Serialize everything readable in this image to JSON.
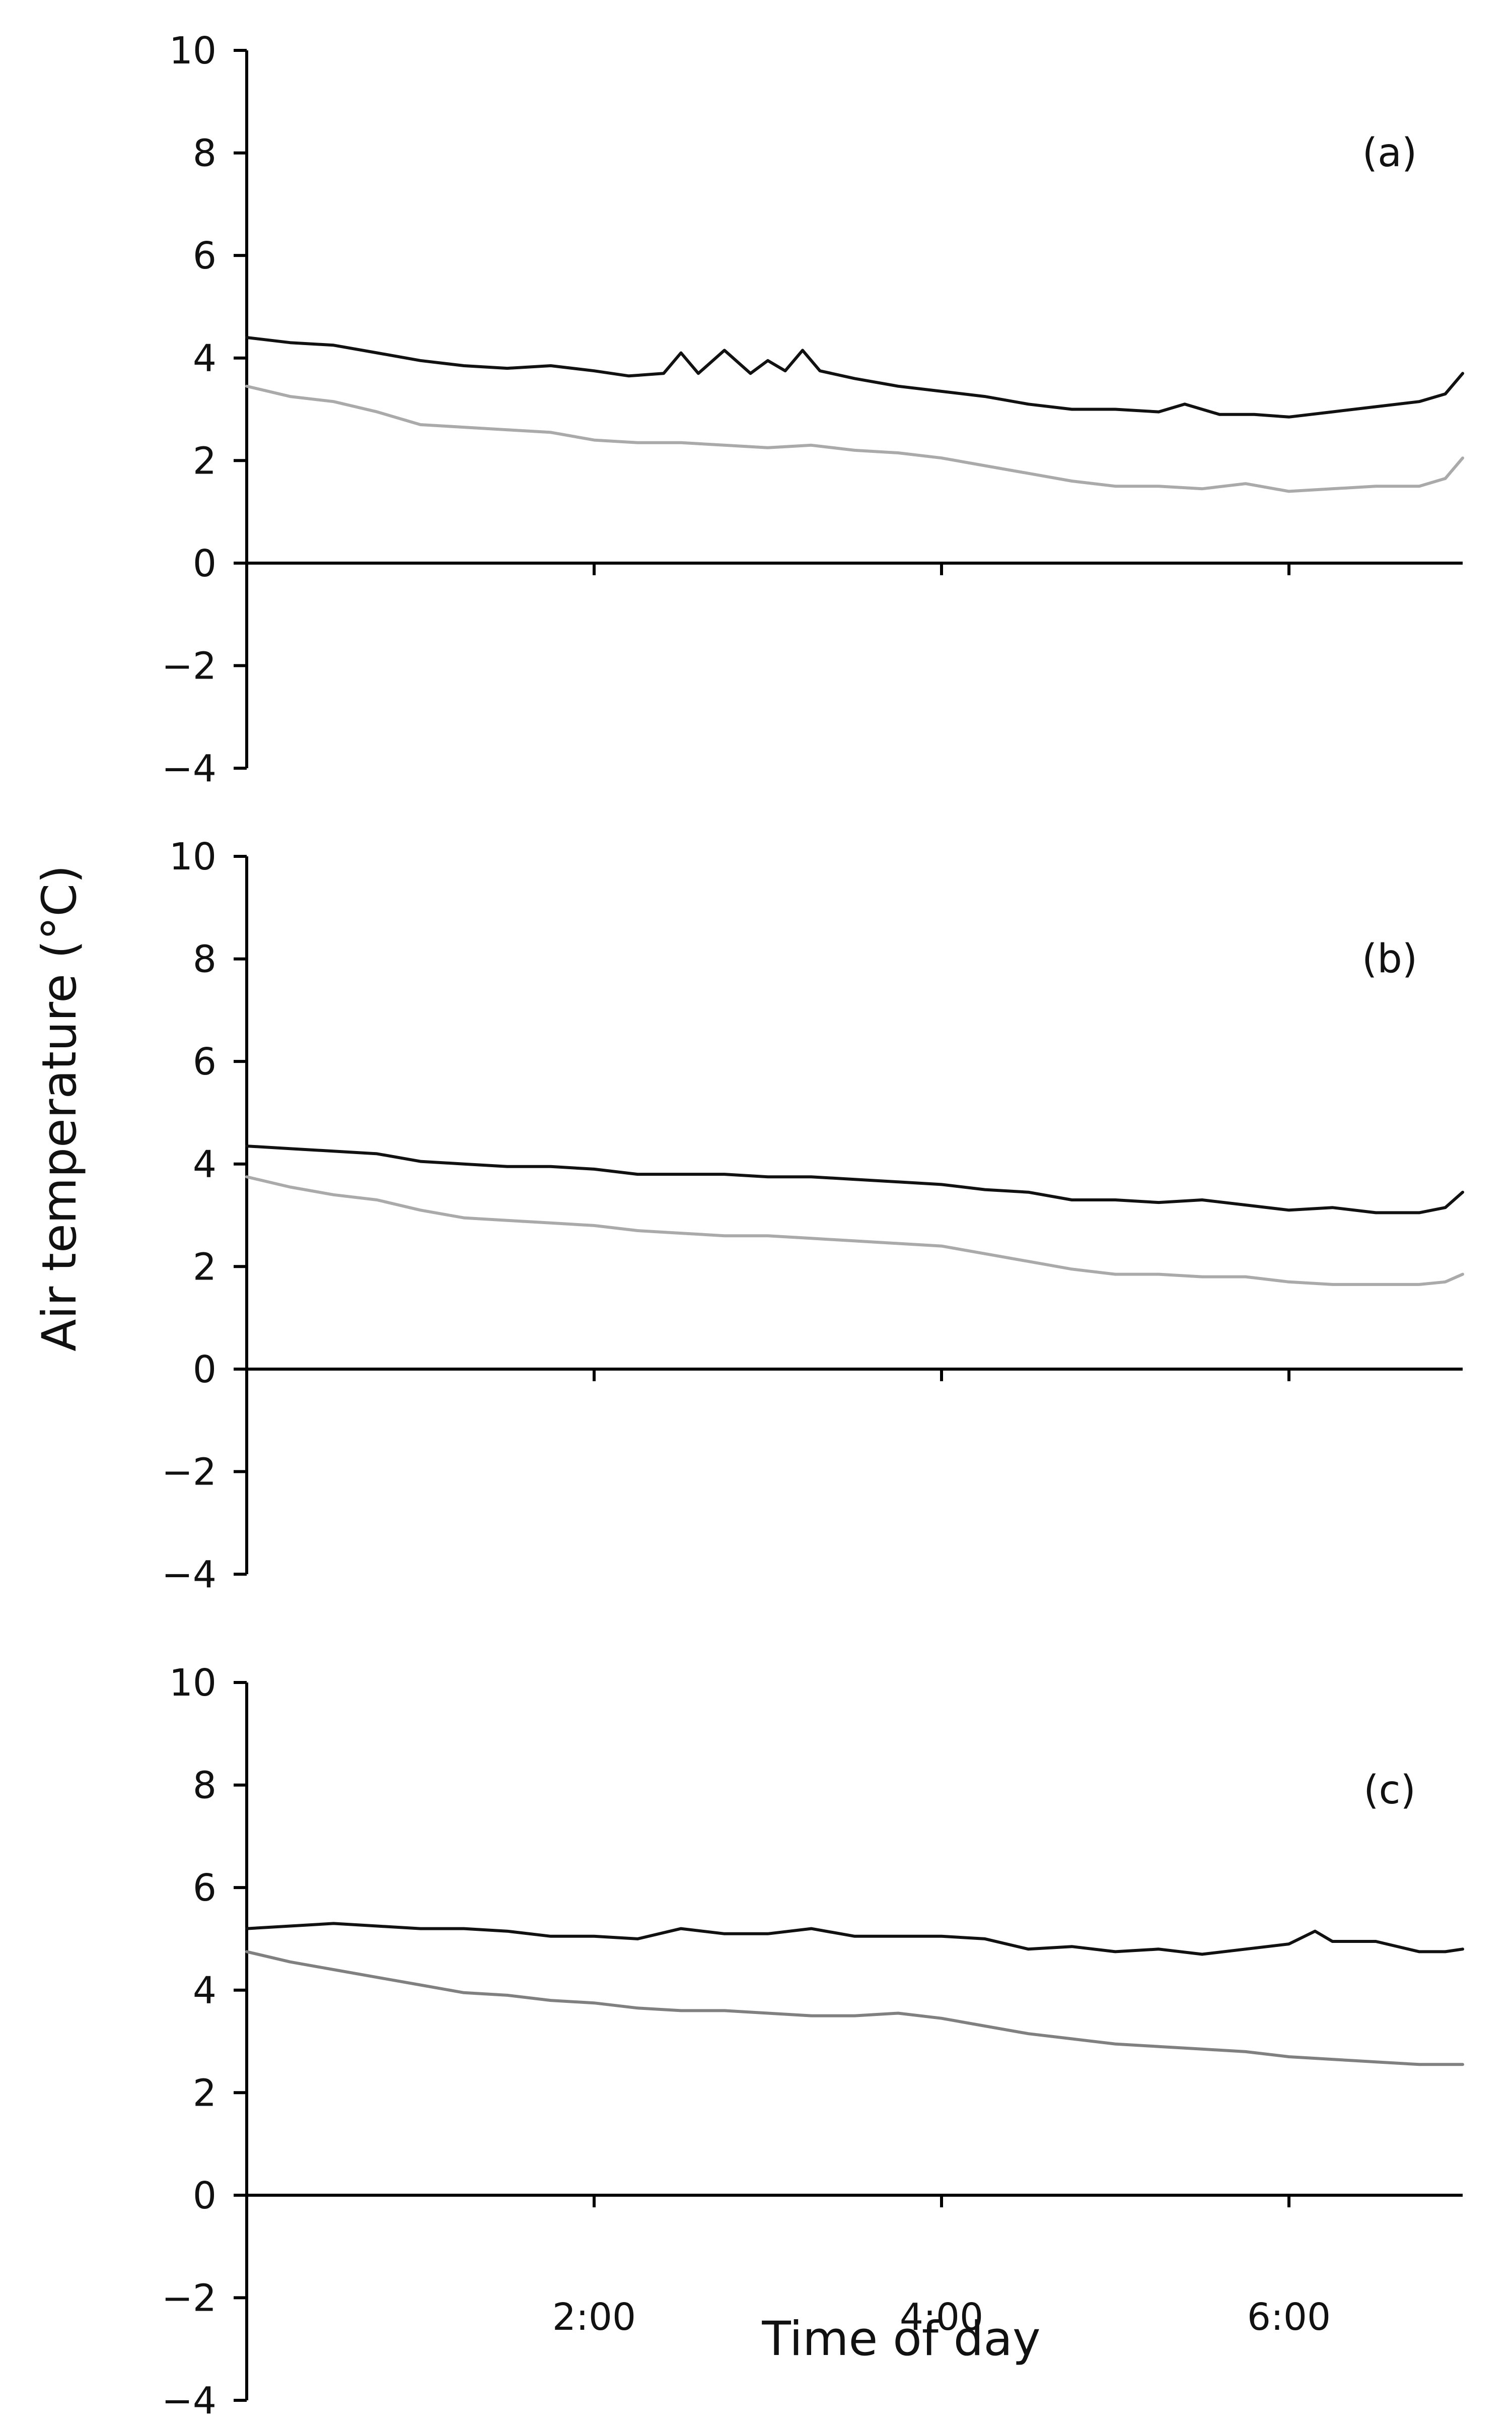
{
  "figure": {
    "ylabel": "Air temperature (°C)",
    "xlabel": "Time of day"
  },
  "chart_data": [
    {
      "type": "line",
      "panel_label": "(a)",
      "ylim": [
        -4,
        10
      ],
      "xlim": [
        0,
        7
      ],
      "yticks": [
        "10",
        "8",
        "6",
        "4",
        "2",
        "0",
        "−2",
        "−4"
      ],
      "xticks": [],
      "grid": false,
      "series": [
        {
          "color": "#111111",
          "x": [
            0,
            0.25,
            0.5,
            0.75,
            1.0,
            1.25,
            1.5,
            1.75,
            2.0,
            2.2,
            2.4,
            2.5,
            2.6,
            2.75,
            2.9,
            3.0,
            3.1,
            3.2,
            3.3,
            3.5,
            3.75,
            4.0,
            4.25,
            4.5,
            4.75,
            5.0,
            5.25,
            5.4,
            5.6,
            5.8,
            6.0,
            6.25,
            6.5,
            6.75,
            6.9,
            7.0
          ],
          "y": [
            4.4,
            4.3,
            4.25,
            4.1,
            3.95,
            3.85,
            3.8,
            3.85,
            3.75,
            3.65,
            3.7,
            4.1,
            3.7,
            4.15,
            3.7,
            3.95,
            3.75,
            4.15,
            3.75,
            3.6,
            3.45,
            3.35,
            3.25,
            3.1,
            3.0,
            3.0,
            2.95,
            3.1,
            2.9,
            2.9,
            2.85,
            2.95,
            3.05,
            3.15,
            3.3,
            3.7
          ]
        },
        {
          "color": "#aaaaaa",
          "x": [
            0,
            0.25,
            0.5,
            0.75,
            1.0,
            1.25,
            1.5,
            1.75,
            2.0,
            2.25,
            2.5,
            2.75,
            3.0,
            3.25,
            3.5,
            3.75,
            4.0,
            4.25,
            4.5,
            4.75,
            5.0,
            5.25,
            5.5,
            5.75,
            6.0,
            6.25,
            6.5,
            6.75,
            6.9,
            7.0
          ],
          "y": [
            3.45,
            3.25,
            3.15,
            2.95,
            2.7,
            2.65,
            2.6,
            2.55,
            2.4,
            2.35,
            2.35,
            2.3,
            2.25,
            2.3,
            2.2,
            2.15,
            2.05,
            1.9,
            1.75,
            1.6,
            1.5,
            1.5,
            1.45,
            1.55,
            1.4,
            1.45,
            1.5,
            1.5,
            1.65,
            2.05
          ]
        }
      ]
    },
    {
      "type": "line",
      "panel_label": "(b)",
      "ylim": [
        -4,
        10
      ],
      "xlim": [
        0,
        7
      ],
      "yticks": [
        "10",
        "8",
        "6",
        "4",
        "2",
        "0",
        "−2",
        "−4"
      ],
      "xticks": [],
      "grid": false,
      "series": [
        {
          "color": "#111111",
          "x": [
            0,
            0.25,
            0.5,
            0.75,
            1.0,
            1.25,
            1.5,
            1.75,
            2.0,
            2.25,
            2.5,
            2.75,
            3.0,
            3.25,
            3.5,
            3.75,
            4.0,
            4.25,
            4.5,
            4.75,
            5.0,
            5.25,
            5.5,
            5.75,
            6.0,
            6.25,
            6.5,
            6.75,
            6.9,
            7.0
          ],
          "y": [
            4.35,
            4.3,
            4.25,
            4.2,
            4.05,
            4.0,
            3.95,
            3.95,
            3.9,
            3.8,
            3.8,
            3.8,
            3.75,
            3.75,
            3.7,
            3.65,
            3.6,
            3.5,
            3.45,
            3.3,
            3.3,
            3.25,
            3.3,
            3.2,
            3.1,
            3.15,
            3.05,
            3.05,
            3.15,
            3.45
          ]
        },
        {
          "color": "#aaaaaa",
          "x": [
            0,
            0.25,
            0.5,
            0.75,
            1.0,
            1.25,
            1.5,
            1.75,
            2.0,
            2.25,
            2.5,
            2.75,
            3.0,
            3.25,
            3.5,
            3.75,
            4.0,
            4.25,
            4.5,
            4.75,
            5.0,
            5.25,
            5.5,
            5.75,
            6.0,
            6.25,
            6.5,
            6.75,
            6.9,
            7.0
          ],
          "y": [
            3.75,
            3.55,
            3.4,
            3.3,
            3.1,
            2.95,
            2.9,
            2.85,
            2.8,
            2.7,
            2.65,
            2.6,
            2.6,
            2.55,
            2.5,
            2.45,
            2.4,
            2.25,
            2.1,
            1.95,
            1.85,
            1.85,
            1.8,
            1.8,
            1.7,
            1.65,
            1.65,
            1.65,
            1.7,
            1.85
          ]
        }
      ]
    },
    {
      "type": "line",
      "panel_label": "(c)",
      "ylim": [
        -4,
        10
      ],
      "xlim": [
        0,
        7
      ],
      "yticks": [
        "10",
        "8",
        "6",
        "4",
        "2",
        "0",
        "−2",
        "−4"
      ],
      "xticks": [
        {
          "value": 2,
          "label": "2:00"
        },
        {
          "value": 4,
          "label": "4:00"
        },
        {
          "value": 6,
          "label": "6:00"
        }
      ],
      "grid": false,
      "series": [
        {
          "color": "#111111",
          "x": [
            0,
            0.25,
            0.5,
            0.75,
            1.0,
            1.25,
            1.5,
            1.75,
            2.0,
            2.25,
            2.5,
            2.75,
            3.0,
            3.25,
            3.5,
            3.75,
            4.0,
            4.25,
            4.5,
            4.75,
            5.0,
            5.25,
            5.5,
            5.75,
            6.0,
            6.15,
            6.25,
            6.5,
            6.75,
            6.9,
            7.0
          ],
          "y": [
            5.2,
            5.25,
            5.3,
            5.25,
            5.2,
            5.2,
            5.15,
            5.05,
            5.05,
            5.0,
            5.2,
            5.1,
            5.1,
            5.2,
            5.05,
            5.05,
            5.05,
            5.0,
            4.8,
            4.85,
            4.75,
            4.8,
            4.7,
            4.8,
            4.9,
            5.15,
            4.95,
            4.95,
            4.75,
            4.75,
            4.8
          ]
        },
        {
          "color": "#808080",
          "x": [
            0,
            0.25,
            0.5,
            0.75,
            1.0,
            1.25,
            1.5,
            1.75,
            2.0,
            2.25,
            2.5,
            2.75,
            3.0,
            3.25,
            3.5,
            3.75,
            4.0,
            4.25,
            4.5,
            4.75,
            5.0,
            5.25,
            5.5,
            5.75,
            6.0,
            6.25,
            6.5,
            6.75,
            7.0
          ],
          "y": [
            4.75,
            4.55,
            4.4,
            4.25,
            4.1,
            3.95,
            3.9,
            3.8,
            3.75,
            3.65,
            3.6,
            3.6,
            3.55,
            3.5,
            3.5,
            3.55,
            3.45,
            3.3,
            3.15,
            3.05,
            2.95,
            2.9,
            2.85,
            2.8,
            2.7,
            2.65,
            2.6,
            2.55,
            2.55
          ]
        }
      ]
    }
  ]
}
